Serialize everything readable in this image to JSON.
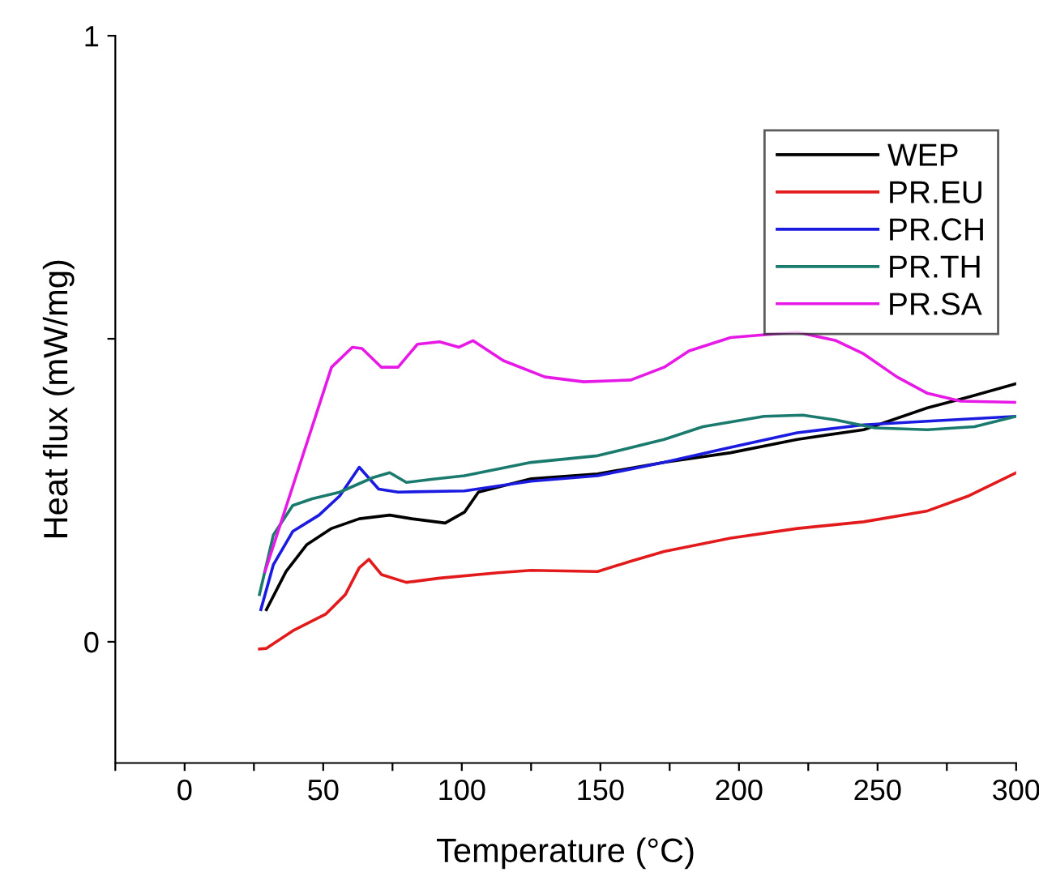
{
  "chart_data": {
    "type": "line",
    "xlabel": "Temperature (°C)",
    "ylabel": "Heat flux (mW/mg)",
    "xlim": [
      -25,
      300
    ],
    "ylim": [
      -0.2,
      1
    ],
    "xticks": [
      {
        "value": -25,
        "label": null
      },
      0,
      {
        "value": 25,
        "label": null
      },
      50,
      {
        "value": 75,
        "label": null
      },
      100,
      {
        "value": 125,
        "label": null
      },
      150,
      {
        "value": 175,
        "label": null
      },
      200,
      {
        "value": 225,
        "label": null
      },
      250,
      {
        "value": 275,
        "label": null
      },
      300
    ],
    "yticks": [
      0,
      {
        "value": 0.5,
        "label": null
      },
      1
    ],
    "grid": false,
    "legend": "top right",
    "marker": "none",
    "line_style": "solid",
    "series": [
      {
        "name": "WEP",
        "color": "#000000",
        "x": [
          29.5,
          36.6,
          44,
          53,
          63,
          74,
          82,
          94,
          101,
          106,
          115.5,
          125,
          149,
          173,
          197,
          221,
          245,
          268,
          283,
          300
        ],
        "values": [
          0.053,
          0.116,
          0.16,
          0.187,
          0.203,
          0.209,
          0.203,
          0.196,
          0.214,
          0.247,
          0.258,
          0.269,
          0.277,
          0.296,
          0.312,
          0.334,
          0.35,
          0.386,
          0.404,
          0.426
        ]
      },
      {
        "name": "PR.EU",
        "color": "#e31a1c",
        "x": [
          27,
          29.4,
          39,
          51,
          58,
          63,
          66.5,
          71,
          80,
          92,
          113,
          125,
          149,
          161,
          173,
          197,
          221,
          245,
          268,
          283,
          300
        ],
        "values": [
          -0.012,
          -0.011,
          0.018,
          0.046,
          0.078,
          0.122,
          0.136,
          0.111,
          0.098,
          0.105,
          0.114,
          0.118,
          0.116,
          0.133,
          0.149,
          0.171,
          0.187,
          0.198,
          0.216,
          0.241,
          0.279
        ]
      },
      {
        "name": "PR.CH",
        "color": "#1a1ae0",
        "x": [
          27.5,
          32,
          39,
          48.5,
          56,
          63,
          70,
          77,
          101,
          125,
          149,
          173,
          197,
          221,
          245,
          268,
          300
        ],
        "values": [
          0.053,
          0.127,
          0.182,
          0.209,
          0.241,
          0.288,
          0.252,
          0.247,
          0.249,
          0.265,
          0.274,
          0.296,
          0.321,
          0.345,
          0.358,
          0.364,
          0.372
        ]
      },
      {
        "name": "PR.TH",
        "color": "#1a7a6e",
        "x": [
          27,
          32,
          39,
          46,
          56,
          68,
          74,
          80,
          89,
          101,
          125,
          149,
          173,
          187,
          209,
          223,
          235,
          249,
          268,
          285,
          300
        ],
        "values": [
          0.078,
          0.176,
          0.225,
          0.236,
          0.247,
          0.271,
          0.279,
          0.263,
          0.268,
          0.274,
          0.296,
          0.307,
          0.334,
          0.355,
          0.372,
          0.374,
          0.366,
          0.353,
          0.35,
          0.355,
          0.372
        ]
      },
      {
        "name": "PR.SA",
        "color": "#e619e6",
        "x": [
          29,
          53,
          60.5,
          64,
          71,
          77,
          84,
          92,
          99,
          104,
          115,
          130,
          144,
          161,
          173,
          182,
          197,
          221,
          235,
          245,
          257,
          268,
          280,
          300
        ],
        "values": [
          0.116,
          0.453,
          0.486,
          0.484,
          0.453,
          0.453,
          0.491,
          0.495,
          0.486,
          0.497,
          0.464,
          0.437,
          0.429,
          0.432,
          0.453,
          0.48,
          0.502,
          0.511,
          0.497,
          0.475,
          0.437,
          0.41,
          0.397,
          0.395
        ]
      }
    ]
  }
}
